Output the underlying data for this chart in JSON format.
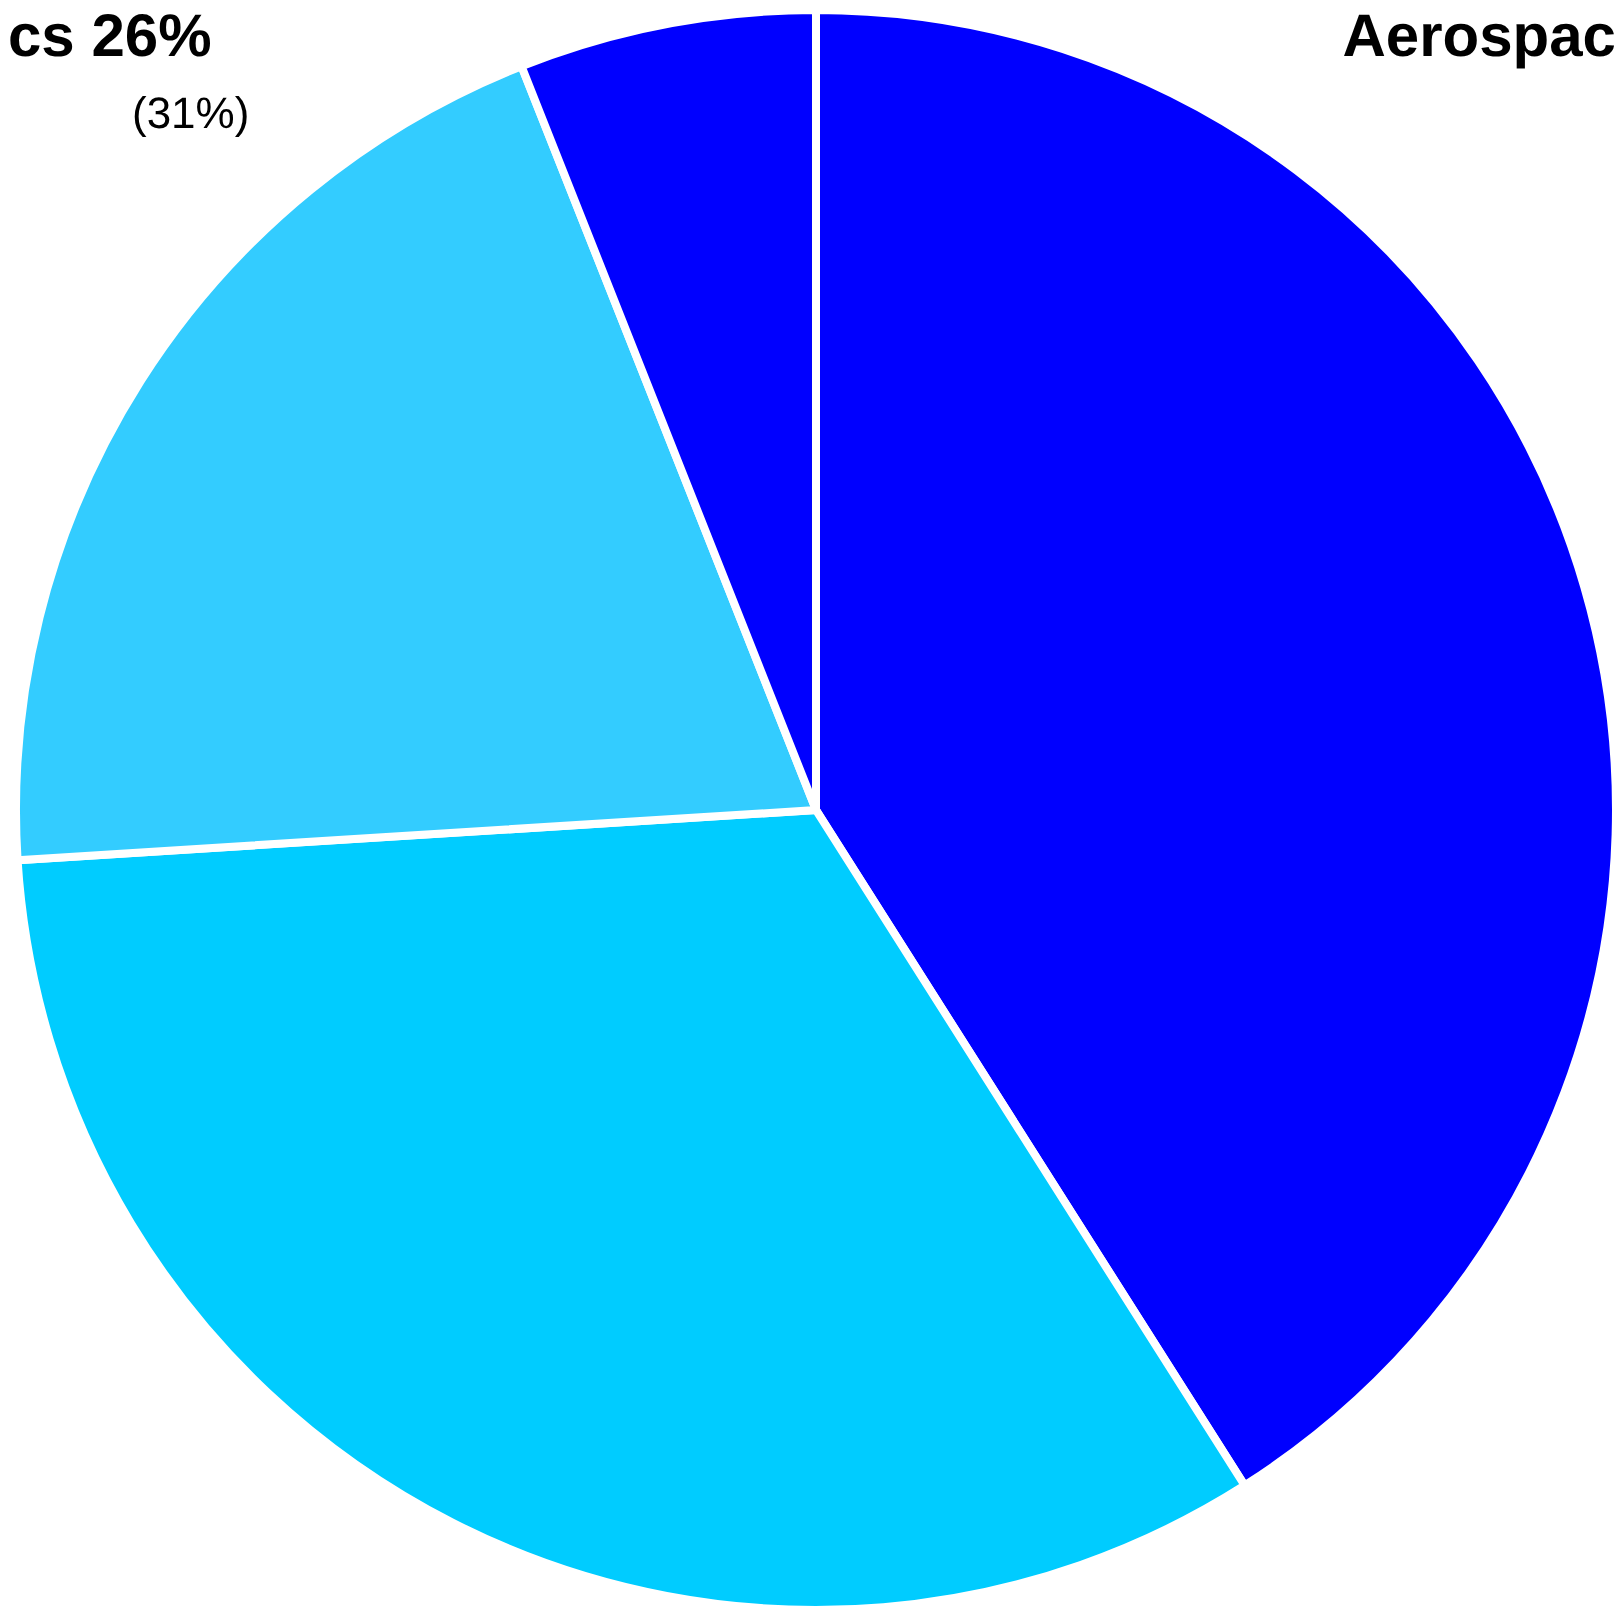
{
  "chart_data": {
    "type": "pie",
    "categories": [
      null,
      null,
      null,
      null
    ],
    "values": [
      41,
      33,
      20,
      6
    ],
    "colors": [
      "#0000ff",
      "#00ccff",
      "#33ccff",
      "#0000ff"
    ],
    "annotations": [
      "cs 26%",
      "(31%)",
      "Aerospac"
    ]
  }
}
